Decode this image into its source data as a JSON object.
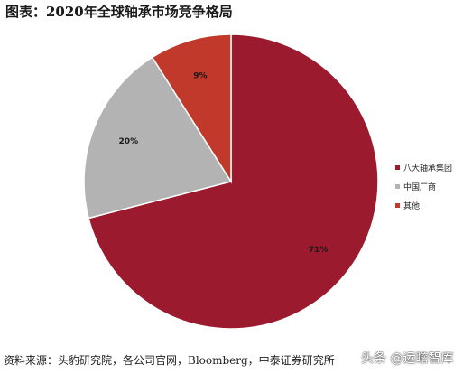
{
  "title": "图表：2020年全球轴承市场竞争格局",
  "source": "资料来源：头豹研究院，各公司官网，Bloomberg，中泰证券研究所",
  "watermark": "头条 @运瞻智库",
  "chart_data": {
    "type": "pie",
    "title": "",
    "slices": [
      {
        "name": "八大轴承集团",
        "value": 71,
        "label": "71%",
        "color": "#9b1a2e"
      },
      {
        "name": "中国厂商",
        "value": 20,
        "label": "20%",
        "color": "#b3b3b3"
      },
      {
        "name": "其他",
        "value": 9,
        "label": "9%",
        "color": "#c0392b"
      }
    ],
    "legend_position": "right"
  }
}
